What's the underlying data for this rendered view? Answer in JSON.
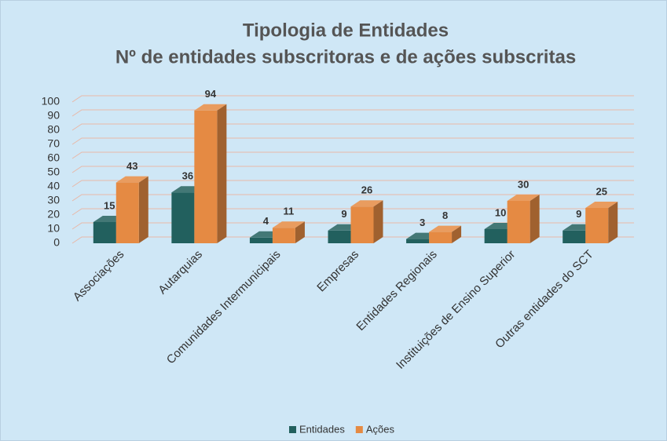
{
  "chart_data": {
    "type": "bar3d",
    "title": "Tipologia de Entidades",
    "subtitle": "Nº de entidades subscritoras e de ações subscritas",
    "categories": [
      "Associações",
      "Autarquias",
      "Comunidades Intermunicipais",
      "Empresas",
      "Entidades Regionais",
      "Instituições de Ensino Superior",
      "Outras entidades do SCT"
    ],
    "series": [
      {
        "name": "Entidades",
        "color": "#22605e",
        "values": [
          15,
          36,
          4,
          9,
          3,
          10,
          9
        ]
      },
      {
        "name": "Ações",
        "color": "#e58a43",
        "values": [
          43,
          94,
          11,
          26,
          8,
          30,
          25
        ]
      }
    ],
    "ylim": [
      0,
      100
    ],
    "yticks": [
      0,
      10,
      20,
      30,
      40,
      50,
      60,
      70,
      80,
      90,
      100
    ],
    "grid": true,
    "legend": "bottom"
  }
}
